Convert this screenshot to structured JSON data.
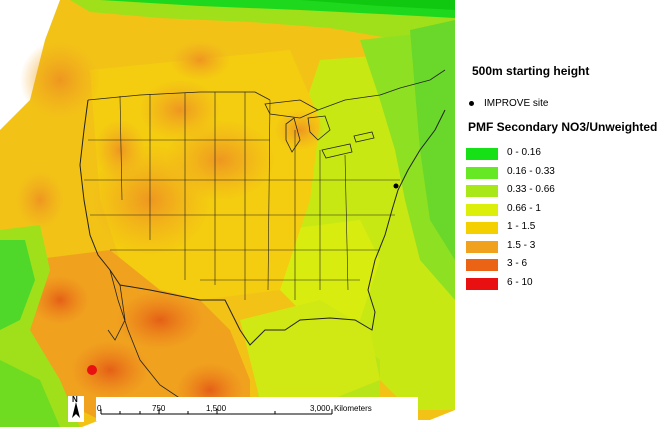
{
  "legend": {
    "height_title": "500m starting height",
    "site_label": "IMPROVE site",
    "variable_title": "PMF Secondary NO3/Unweighted",
    "classes": [
      {
        "label": "0 - 0.16",
        "color": "#16e016"
      },
      {
        "label": "0.16 - 0.33",
        "color": "#66e824"
      },
      {
        "label": "0.33 - 0.66",
        "color": "#a8e818"
      },
      {
        "label": "0.66 - 1",
        "color": "#dcef0a"
      },
      {
        "label": "1 - 1.5",
        "color": "#f5d000"
      },
      {
        "label": "1.5 - 3",
        "color": "#f0a21e"
      },
      {
        "label": "3 - 6",
        "color": "#eb6314"
      },
      {
        "label": "6 - 10",
        "color": "#e81010"
      }
    ]
  },
  "scalebar": {
    "ticks": [
      "0",
      "750",
      "1,500",
      "3,000"
    ],
    "units": "Kilometers"
  },
  "north_arrow": {
    "label": "N"
  }
}
